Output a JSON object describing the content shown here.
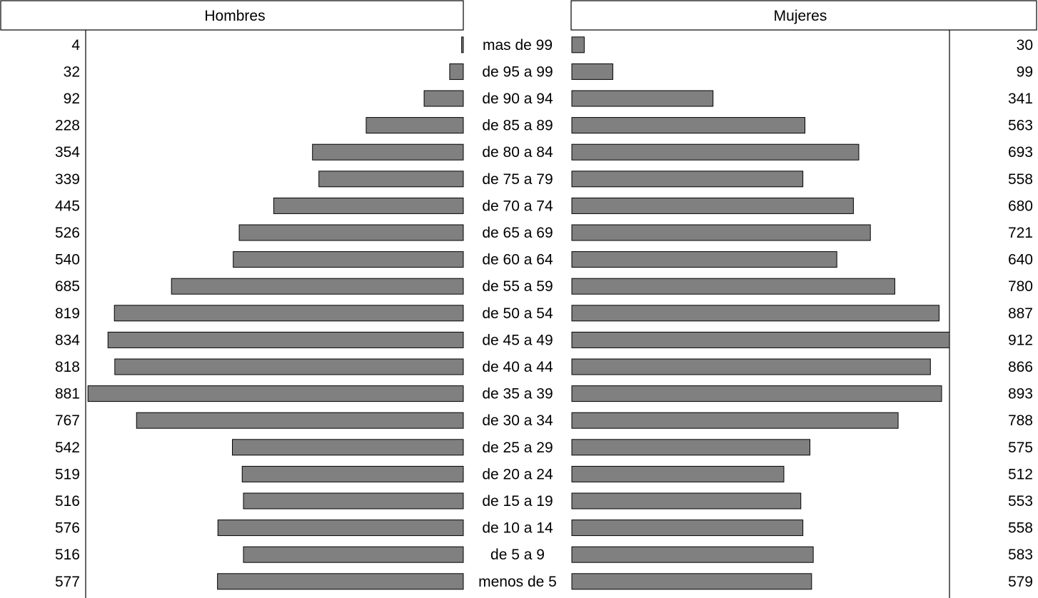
{
  "chart_data": {
    "type": "bar",
    "headers": {
      "left": "Hombres",
      "right": "Mujeres"
    },
    "categories": [
      "mas de 99",
      "de 95 a 99",
      "de 90 a 94",
      "de 85 a 89",
      "de 80 a 84",
      "de 75 a 79",
      "de 70 a 74",
      "de 65 a 69",
      "de 60 a 64",
      "de 55 a 59",
      "de 50 a 54",
      "de 45 a 49",
      "de 40 a 44",
      "de 35 a 39",
      "de 30 a 34",
      "de 25 a 29",
      "de 20 a 24",
      "de 15 a 19",
      "de 10 a 14",
      "de 5 a 9",
      "menos de 5"
    ],
    "series": [
      {
        "name": "Hombres",
        "values": [
          4,
          32,
          92,
          228,
          354,
          339,
          445,
          526,
          540,
          685,
          819,
          834,
          818,
          881,
          767,
          542,
          519,
          516,
          576,
          516,
          577
        ]
      },
      {
        "name": "Mujeres",
        "values": [
          30,
          99,
          341,
          563,
          693,
          558,
          680,
          721,
          640,
          780,
          887,
          912,
          866,
          893,
          788,
          575,
          512,
          553,
          558,
          583,
          579
        ]
      }
    ],
    "bar_color": "#808080"
  }
}
